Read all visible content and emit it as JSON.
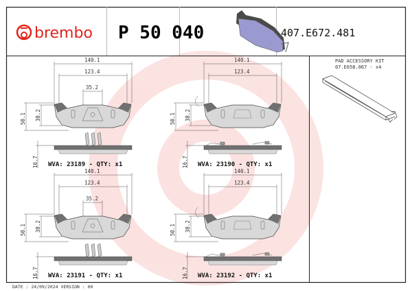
{
  "header": {
    "brand": "brembo",
    "product_code": "P 50 040",
    "reference": "407.E672.481"
  },
  "accessory": {
    "title": "PAD ACCESSORY KIT",
    "code": "07.E658.067 - x4"
  },
  "panels": [
    {
      "width": "140.1",
      "inner": "123.4",
      "center": "35.2",
      "height": "50.1",
      "inner_height": "38.2",
      "thickness": "16.7",
      "label": "WVA: 23189 - QTY: x1"
    },
    {
      "width": "140.1",
      "inner": "123.4",
      "height": "50.1",
      "inner_height": "38.2",
      "thickness": "16.7",
      "label": "WVA: 23190 - QTY: x1"
    },
    {
      "width": "140.1",
      "inner": "123.4",
      "center": "35.2",
      "height": "50.1",
      "inner_height": "38.2",
      "thickness": "16.7",
      "label": "WVA: 23191 - QTY: x1"
    },
    {
      "width": "140.1",
      "inner": "123.4",
      "height": "50.1",
      "inner_height": "38.2",
      "thickness": "16.7",
      "label": "WVA: 23192 - QTY: x1"
    }
  ],
  "footer": {
    "text": "DATE : 24/09/2024 VERSION : 00"
  },
  "colors": {
    "brand": "#e2231a",
    "pad_fill": "#d8d8d8",
    "backplate": "#707070",
    "render_pad": "#9a9ad0"
  }
}
